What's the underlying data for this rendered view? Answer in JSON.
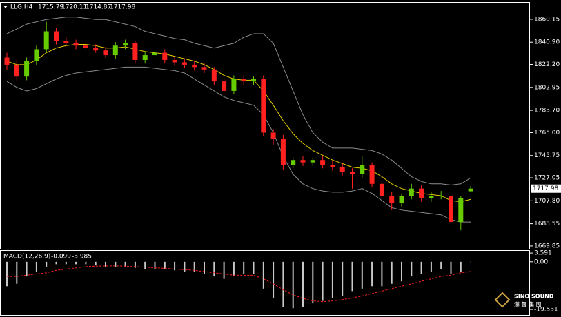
{
  "chart_data": [
    {
      "type": "candlestick",
      "symbol": "LLG,H4",
      "open": [
        1828,
        1822,
        1812,
        1825,
        1835,
        1850,
        1842,
        1840,
        1838,
        1836,
        1834,
        1830,
        1838,
        1840,
        1826,
        1830,
        1832,
        1826,
        1824,
        1822,
        1820,
        1818,
        1808,
        1800,
        1810,
        1808,
        1810,
        1765,
        1760,
        1738,
        1742,
        1740,
        1742,
        1738,
        1736,
        1732,
        1730,
        1738,
        1722,
        1712,
        1706,
        1712,
        1718,
        1710,
        1712,
        1712,
        1690,
        1715.79
      ],
      "high": [
        1832,
        1826,
        1828,
        1838,
        1858,
        1853,
        1845,
        1843,
        1841,
        1839,
        1837,
        1841,
        1843,
        1842,
        1833,
        1835,
        1835,
        1829,
        1827,
        1825,
        1823,
        1820,
        1811,
        1813,
        1813,
        1812,
        1813,
        1768,
        1763,
        1744,
        1745,
        1744,
        1745,
        1741,
        1739,
        1735,
        1745,
        1740,
        1725,
        1715,
        1714,
        1722,
        1721,
        1715,
        1716,
        1715,
        1712,
        1720.11
      ],
      "low": [
        1818,
        1808,
        1809,
        1822,
        1832,
        1839,
        1838,
        1835,
        1834,
        1832,
        1828,
        1827,
        1835,
        1823,
        1823,
        1827,
        1823,
        1821,
        1819,
        1817,
        1815,
        1805,
        1797,
        1797,
        1805,
        1805,
        1762,
        1755,
        1734,
        1735,
        1737,
        1737,
        1735,
        1733,
        1729,
        1718,
        1727,
        1719,
        1708,
        1700,
        1703,
        1709,
        1707,
        1707,
        1709,
        1686,
        1683,
        1714.87
      ],
      "close": [
        1822,
        1812,
        1825,
        1835,
        1850,
        1842,
        1840,
        1838,
        1836,
        1834,
        1830,
        1838,
        1840,
        1826,
        1830,
        1832,
        1826,
        1824,
        1822,
        1820,
        1818,
        1808,
        1800,
        1810,
        1808,
        1810,
        1765,
        1760,
        1738,
        1742,
        1740,
        1742,
        1738,
        1736,
        1732,
        1730,
        1738,
        1722,
        1712,
        1706,
        1712,
        1718,
        1710,
        1712,
        1712,
        1690,
        1710,
        1717.98
      ],
      "up_color": "#66cc00",
      "down_color": "#ff2020",
      "bands": {
        "color": "#8c8c8c",
        "upper": [
          1848,
          1852,
          1856,
          1858,
          1860,
          1861,
          1862,
          1862,
          1861,
          1860,
          1860,
          1858,
          1856,
          1854,
          1850,
          1848,
          1846,
          1844,
          1843,
          1840,
          1838,
          1836,
          1838,
          1840,
          1845,
          1848,
          1848,
          1840,
          1820,
          1800,
          1780,
          1765,
          1757,
          1752,
          1752,
          1752,
          1751,
          1750,
          1747,
          1742,
          1735,
          1728,
          1724,
          1722,
          1722,
          1721,
          1722,
          1727
        ],
        "lower": [
          1808,
          1803,
          1800,
          1802,
          1806,
          1810,
          1813,
          1815,
          1816,
          1817,
          1818,
          1819,
          1820,
          1820,
          1820,
          1819,
          1818,
          1817,
          1815,
          1810,
          1805,
          1800,
          1795,
          1792,
          1790,
          1788,
          1780,
          1765,
          1745,
          1730,
          1722,
          1718,
          1716,
          1715,
          1715,
          1716,
          1718,
          1714,
          1708,
          1702,
          1700,
          1699,
          1698,
          1697,
          1696,
          1692,
          1690,
          1690
        ]
      },
      "ma": {
        "color": "#e8d000",
        "values": [
          1825,
          1822,
          1822,
          1826,
          1832,
          1836,
          1838,
          1839,
          1839,
          1838,
          1836,
          1836,
          1837,
          1835,
          1833,
          1832,
          1831,
          1829,
          1827,
          1825,
          1822,
          1818,
          1813,
          1810,
          1809,
          1809,
          1800,
          1788,
          1775,
          1764,
          1756,
          1750,
          1746,
          1742,
          1739,
          1736,
          1735,
          1733,
          1728,
          1722,
          1718,
          1716,
          1714,
          1713,
          1712,
          1708,
          1707,
          1709
        ]
      },
      "ylim": [
        1667.5,
        1874
      ],
      "yticks": [
        1860.15,
        {
          "value": 1840.9,
          "label": "1840.90"
        },
        {
          "value": 1822.2,
          "label": "1822.20"
        },
        1802.95,
        {
          "value": 1783.7,
          "label": "1783.70"
        },
        {
          "value": 1765,
          "label": "1765.00"
        },
        1745.75,
        1727.05,
        {
          "value": 1707.8,
          "label": "1707.80"
        },
        1688.55,
        1669.85
      ]
    },
    {
      "type": "macd",
      "title": "MACD(12,26,9)",
      "histogram": {
        "color": "#c8c8c8",
        "values": [
          -10,
          -9,
          -6,
          -4,
          -2,
          -1,
          -1,
          -1,
          -1,
          -1.5,
          -2,
          -2,
          -2,
          -2.5,
          -3,
          -3,
          -3,
          -3.5,
          -4,
          -4,
          -5,
          -6,
          -7,
          -6,
          -5,
          -5,
          -11,
          -15,
          -18.5,
          -19,
          -18.5,
          -17,
          -16,
          -15,
          -14,
          -12,
          -11,
          -10,
          -10,
          -9,
          -8,
          -6,
          -5,
          -4,
          -3,
          -5,
          -4,
          -0.099
        ]
      },
      "signal": {
        "color": "#ff2020",
        "values": [
          -6,
          -6,
          -5.5,
          -5,
          -4.5,
          -3.5,
          -3,
          -2.5,
          -2,
          -1.8,
          -1.7,
          -1.7,
          -1.8,
          -2,
          -2.2,
          -2.5,
          -2.7,
          -3,
          -3.2,
          -3.5,
          -4,
          -4.5,
          -5,
          -5.5,
          -5.5,
          -5.5,
          -7,
          -9,
          -11.5,
          -13.5,
          -15,
          -16,
          -16.3,
          -16,
          -15.5,
          -14.8,
          -14,
          -13,
          -12,
          -11,
          -10,
          -9,
          -8,
          -7,
          -6,
          -5.5,
          -4.5,
          -3.985
        ]
      },
      "ylim": [
        -21.76,
        4.46
      ],
      "yticks": [
        3.591,
        {
          "value": 0,
          "label": "0.00"
        },
        -19.531
      ]
    }
  ],
  "watermark": {
    "brand": "SINO SOUND",
    "chinese": "漢 聲 集 團"
  }
}
